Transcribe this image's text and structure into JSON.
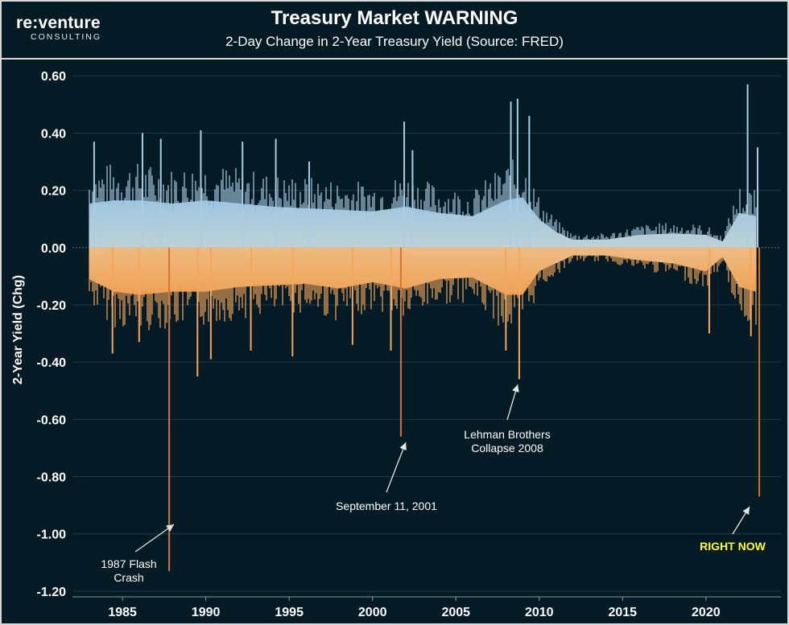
{
  "header": {
    "logo_main": "re:venture",
    "logo_sub": "CONSULTING"
  },
  "chart_data": {
    "type": "bar",
    "title": "Treasury Market WARNING",
    "subtitle": "2-Day Change in 2-Year Treasury Yield (Source: FRED)",
    "xlabel": "",
    "ylabel": "2-Year Yield (Chg)",
    "xlim": [
      1982.0,
      2024.5
    ],
    "ylim": [
      -1.22,
      0.64
    ],
    "x_ticks": [
      "1985",
      "1990",
      "1995",
      "2000",
      "2005",
      "2010",
      "2015",
      "2020"
    ],
    "y_ticks": [
      "0.60",
      "0.40",
      "0.20",
      "0.00",
      "-0.20",
      "-0.40",
      "-0.60",
      "-0.80",
      "-1.00",
      "-1.20"
    ],
    "grid": true,
    "colors": {
      "positive": "#a9cde3",
      "negative": "#f4a75b",
      "extreme_negative": "#d9742e",
      "background": "#041a24"
    },
    "envelope": {
      "x": [
        1983.0,
        1984.5,
        1986.0,
        1988.0,
        1990.0,
        1992.0,
        1994.0,
        1996.0,
        1998.0,
        2000.0,
        2002.0,
        2004.0,
        2006.0,
        2008.0,
        2009.0,
        2010.0,
        2011.0,
        2012.0,
        2014.0,
        2016.0,
        2018.0,
        2020.0,
        2021.0,
        2022.0,
        2023.0
      ],
      "max": [
        0.28,
        0.3,
        0.3,
        0.28,
        0.3,
        0.28,
        0.26,
        0.25,
        0.24,
        0.23,
        0.26,
        0.22,
        0.2,
        0.3,
        0.32,
        0.18,
        0.1,
        0.05,
        0.05,
        0.08,
        0.09,
        0.08,
        0.04,
        0.22,
        0.2
      ],
      "min": [
        -0.2,
        -0.28,
        -0.3,
        -0.28,
        -0.28,
        -0.25,
        -0.24,
        -0.23,
        -0.26,
        -0.22,
        -0.26,
        -0.2,
        -0.19,
        -0.3,
        -0.3,
        -0.15,
        -0.1,
        -0.05,
        -0.05,
        -0.08,
        -0.1,
        -0.15,
        -0.06,
        -0.25,
        -0.28
      ]
    },
    "spikes": [
      {
        "x": 1983.3,
        "value": 0.37
      },
      {
        "x": 1986.2,
        "value": 0.4
      },
      {
        "x": 1987.3,
        "value": 0.38
      },
      {
        "x": 1989.7,
        "value": 0.41
      },
      {
        "x": 1992.2,
        "value": 0.37
      },
      {
        "x": 1994.2,
        "value": 0.38
      },
      {
        "x": 1996.2,
        "value": 0.3
      },
      {
        "x": 2001.9,
        "value": 0.44
      },
      {
        "x": 2002.4,
        "value": 0.34
      },
      {
        "x": 2008.3,
        "value": 0.51
      },
      {
        "x": 2008.7,
        "value": 0.52
      },
      {
        "x": 2009.4,
        "value": 0.46
      },
      {
        "x": 2022.5,
        "value": 0.57
      },
      {
        "x": 2023.1,
        "value": 0.35
      },
      {
        "x": 1984.4,
        "value": -0.37
      },
      {
        "x": 1986.0,
        "value": -0.33
      },
      {
        "x": 1987.8,
        "value": -1.13
      },
      {
        "x": 1989.5,
        "value": -0.45
      },
      {
        "x": 1990.3,
        "value": -0.39
      },
      {
        "x": 1992.7,
        "value": -0.36
      },
      {
        "x": 1995.2,
        "value": -0.38
      },
      {
        "x": 1998.8,
        "value": -0.34
      },
      {
        "x": 2001.1,
        "value": -0.36
      },
      {
        "x": 2001.7,
        "value": -0.66
      },
      {
        "x": 2008.0,
        "value": -0.36
      },
      {
        "x": 2008.8,
        "value": -0.46
      },
      {
        "x": 2020.2,
        "value": -0.3
      },
      {
        "x": 2022.7,
        "value": -0.31
      },
      {
        "x": 2023.2,
        "value": -0.87
      }
    ],
    "annotations": [
      {
        "text": [
          "1987 Flash",
          "Crash"
        ],
        "x": 1987.8,
        "y": -1.13
      },
      {
        "text": [
          "September 11, 2001"
        ],
        "x": 2001.7,
        "y": -0.66
      },
      {
        "text": [
          "Lehman Brothers",
          "Collapse 2008"
        ],
        "x": 2008.8,
        "y": -0.46
      },
      {
        "text": [
          "RIGHT NOW"
        ],
        "x": 2023.2,
        "y": -0.87,
        "highlight": true
      }
    ]
  }
}
